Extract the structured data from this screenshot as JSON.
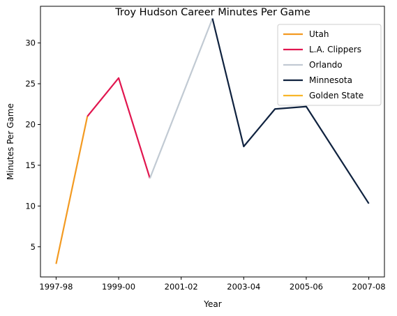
{
  "chart_data": {
    "type": "line",
    "title": "Troy Hudson Career Minutes Per Game",
    "xlabel": "Year",
    "ylabel": "Minutes Per Game",
    "x_index_range": [
      -0.5,
      10.5
    ],
    "ylim": [
      1.3,
      34.5
    ],
    "x_ticks": [
      "1997-98",
      "1999-00",
      "2001-02",
      "2003-04",
      "2005-06",
      "2007-08"
    ],
    "y_ticks": [
      5,
      10,
      15,
      20,
      25,
      30
    ],
    "grid": false,
    "legend_position": "top-right",
    "series": [
      {
        "name": "Utah",
        "color": "#F39A21",
        "points": [
          [
            "1997-98",
            2.9
          ],
          [
            "1998-99",
            21.0
          ]
        ]
      },
      {
        "name": "L.A. Clippers",
        "color": "#E1164F",
        "points": [
          [
            "1998-99",
            21.0
          ],
          [
            "1999-00",
            25.7
          ],
          [
            "2000-01",
            13.4
          ]
        ]
      },
      {
        "name": "Orlando",
        "color": "#C1CAD3",
        "points": [
          [
            "2000-01",
            13.4
          ],
          [
            "2002-03",
            33.0
          ]
        ]
      },
      {
        "name": "Minnesota",
        "color": "#0F223F",
        "points": [
          [
            "2002-03",
            33.0
          ],
          [
            "2003-04",
            17.3
          ],
          [
            "2004-05",
            21.9
          ],
          [
            "2005-06",
            22.2
          ],
          [
            "2007-08",
            10.3
          ]
        ]
      },
      {
        "name": "Golden State",
        "color": "#F8B62A",
        "points": []
      }
    ]
  }
}
